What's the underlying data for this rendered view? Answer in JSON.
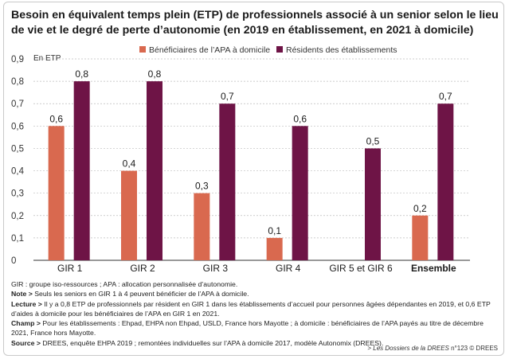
{
  "title": "Besoin en équivalent temps plein (ETP) de professionnels associé à un senior selon le lieu de vie et le degré de perte d’autonomie (en 2019 en établissement, en 2021 à domicile)",
  "chart_data": {
    "type": "bar",
    "ylabel": "En ETP",
    "ylim": [
      0,
      0.9
    ],
    "yticks": [
      "0",
      "0,1",
      "0,2",
      "0,3",
      "0,4",
      "0,5",
      "0,6",
      "0,7",
      "0,8",
      "0,9"
    ],
    "categories": [
      "GIR 1",
      "GIR 2",
      "GIR 3",
      "GIR 4",
      "GIR 5 et GIR 6",
      "Ensemble"
    ],
    "series": [
      {
        "name": "Bénéficiaires de l’APA à domicile",
        "color": "#d9694f",
        "values": [
          0.6,
          0.4,
          0.3,
          0.1,
          null,
          0.2
        ],
        "labels": [
          "0,6",
          "0,4",
          "0,3",
          "0,1",
          "",
          "0,2"
        ]
      },
      {
        "name": "Résidents des établissements",
        "color": "#6e1446",
        "values": [
          0.8,
          0.8,
          0.7,
          0.6,
          0.5,
          0.7
        ],
        "labels": [
          "0,8",
          "0,8",
          "0,7",
          "0,6",
          "0,5",
          "0,7"
        ]
      }
    ],
    "bold_category": "Ensemble",
    "grid": true,
    "legend": "top"
  },
  "notes": {
    "line1": "GIR : groupe iso-ressources ; APA : allocation personnalisée d’autonomie.",
    "note_label": "Note >",
    "note_text": " Seuls les seniors en GIR 1 à 4 peuvent bénéficier de l’APA à domicile.",
    "lecture_label": "Lecture >",
    "lecture_text": " Il y a 0,8 ETP de professionnels par résident en GIR 1 dans les établissements d’accueil pour personnes âgées dépendantes en 2019, et 0,6 ETP d’aides à domicile pour les bénéficiaires de l’APA en GIR 1 en 2021.",
    "champ_label": "Champ >",
    "champ_text": " Pour les établissements : Ehpad, EHPA non Ehpad, USLD, France hors Mayotte ; à domicile : bénéficiaires de l’APA payés au titre de décembre 2021, France hors Mayotte.",
    "source_label": "Source >",
    "source_text": " DREES, enquête EHPA 2019 ; remontées individuelles sur l’APA à domicile 2017, modèle Autonomix (DREES)."
  },
  "credit": {
    "prefix": "> ",
    "publication": "Les Dossiers de la DREES",
    "suffix": " n°123 © DREES"
  }
}
